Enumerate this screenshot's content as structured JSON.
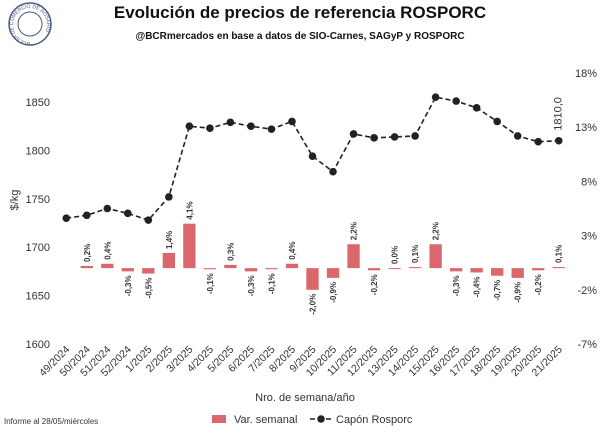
{
  "chart_data": {
    "type": "bar-line",
    "title": "Evolución de precios de referencia ROSPORC",
    "subtitle": "@BCRmercados en base a datos de SIO-Carnes, SAGyP y ROSPORC",
    "logo_text": "BOLSA DE COMERCIO DE ROSARIO",
    "footnote": "Informe al 28/05/miércoles",
    "x_label": "Nro. de semana/año",
    "y_label": "$/kg",
    "categories": [
      "49/2024",
      "50/2024",
      "51/2024",
      "52/2024",
      "1/2025",
      "2/2025",
      "3/2025",
      "4/2025",
      "5/2025",
      "6/2025",
      "7/2025",
      "8/2025",
      "9/2025",
      "10/2025",
      "11/2025",
      "12/2025",
      "13/2025",
      "14/2025",
      "15/2025",
      "16/2025",
      "17/2025",
      "18/2025",
      "19/2025",
      "20/2025",
      "21/2025"
    ],
    "ylim": [
      1600,
      1880
    ],
    "yticks": [
      1600,
      1650,
      1700,
      1750,
      1800,
      1850
    ],
    "y2lim": [
      -7,
      18
    ],
    "y2ticks": [
      {
        "value": -7,
        "label": "-7%"
      },
      {
        "value": -2,
        "label": "-2%"
      },
      {
        "value": 3,
        "label": "3%"
      },
      {
        "value": 8,
        "label": "8%"
      },
      {
        "value": 13,
        "label": "13%"
      },
      {
        "value": 18,
        "label": "18%"
      }
    ],
    "grid": false,
    "legend": "bottom",
    "series": [
      {
        "name": "Var. semanal",
        "type": "bar",
        "axis": "y2",
        "color": "#d9676b",
        "values": [
          null,
          0.2,
          0.4,
          -0.3,
          -0.5,
          1.4,
          4.1,
          -0.1,
          0.3,
          -0.3,
          -0.1,
          0.4,
          -2.0,
          -0.9,
          2.2,
          -0.2,
          0.0,
          0.1,
          2.2,
          -0.3,
          -0.4,
          -0.7,
          -0.9,
          -0.2,
          0.1
        ],
        "value_labels": [
          null,
          "0,2%",
          "0,4%",
          "-0,3%",
          "-0,5%",
          "1,4%",
          "4,1%",
          "-0,1%",
          "0,3%",
          "-0,3%",
          "-0,1%",
          "0,4%",
          "-2,0%",
          "-0,9%",
          "2,2%",
          "-0,2%",
          "0,0%",
          "0,1%",
          "2,2%",
          "-0,3%",
          "-0,4%",
          "-0,7%",
          "-0,9%",
          "-0,2%",
          "0,1%"
        ]
      },
      {
        "name": "Capón Rosporc",
        "type": "line",
        "axis": "y",
        "color": "#222222",
        "values": [
          1730,
          1733,
          1740,
          1735,
          1728,
          1752,
          1825,
          1823,
          1829,
          1825,
          1822,
          1830,
          1794,
          1778,
          1817,
          1813,
          1814,
          1815,
          1855,
          1851,
          1844,
          1830,
          1815,
          1809,
          1810
        ],
        "value_labels": [
          null,
          null,
          null,
          null,
          null,
          null,
          null,
          null,
          null,
          null,
          null,
          null,
          null,
          null,
          null,
          null,
          null,
          null,
          null,
          null,
          null,
          null,
          null,
          null,
          "1810,0"
        ]
      }
    ]
  }
}
